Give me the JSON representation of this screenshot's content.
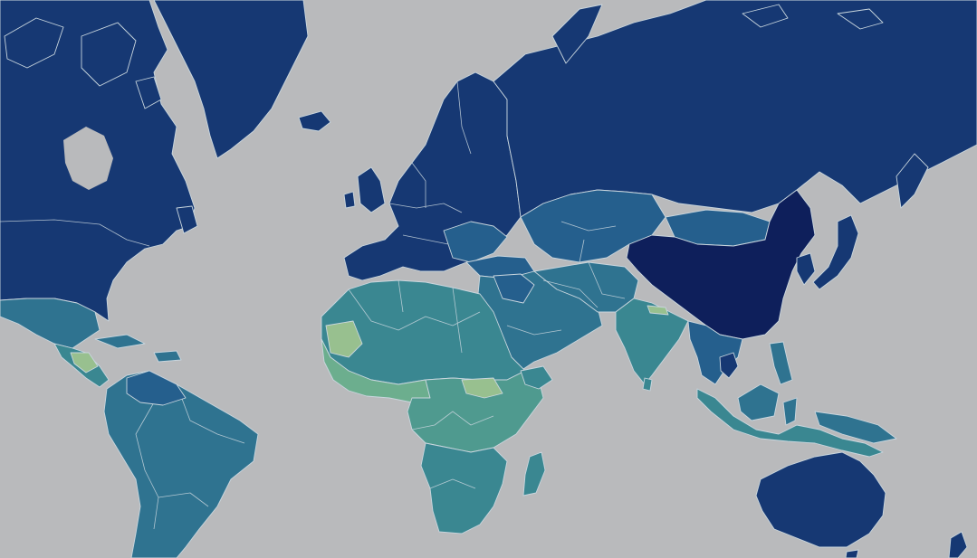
{
  "map": {
    "type": "choropleth-world",
    "background_color": "#b9babc",
    "border_color": "#c9d6de",
    "palette": {
      "darkest": "#0e1f5b",
      "dark": "#163873",
      "blue": "#1c4a82",
      "mid_blue": "#255f8d",
      "teal_blue": "#2f7390",
      "teal": "#3a8791",
      "green_teal": "#4f9a8f",
      "sage": "#6cae8e",
      "pale_green": "#98c08f"
    },
    "regions": [
      {
        "name": "north-america",
        "class": "dark"
      },
      {
        "name": "greenland",
        "class": "dark"
      },
      {
        "name": "mexico",
        "class": "teal_blue"
      },
      {
        "name": "central-america",
        "class": "teal"
      },
      {
        "name": "south-america",
        "class": "teal_blue"
      },
      {
        "name": "europe",
        "class": "dark"
      },
      {
        "name": "russia",
        "class": "dark"
      },
      {
        "name": "central-asia",
        "class": "mid_blue"
      },
      {
        "name": "china",
        "class": "darkest"
      },
      {
        "name": "middle-east",
        "class": "teal_blue"
      },
      {
        "name": "india",
        "class": "teal"
      },
      {
        "name": "southeast-asia",
        "class": "mid_blue"
      },
      {
        "name": "north-africa",
        "class": "teal"
      },
      {
        "name": "west-africa",
        "class": "sage"
      },
      {
        "name": "central-africa",
        "class": "green_teal"
      },
      {
        "name": "southern-africa",
        "class": "teal"
      },
      {
        "name": "australia",
        "class": "dark"
      }
    ]
  }
}
